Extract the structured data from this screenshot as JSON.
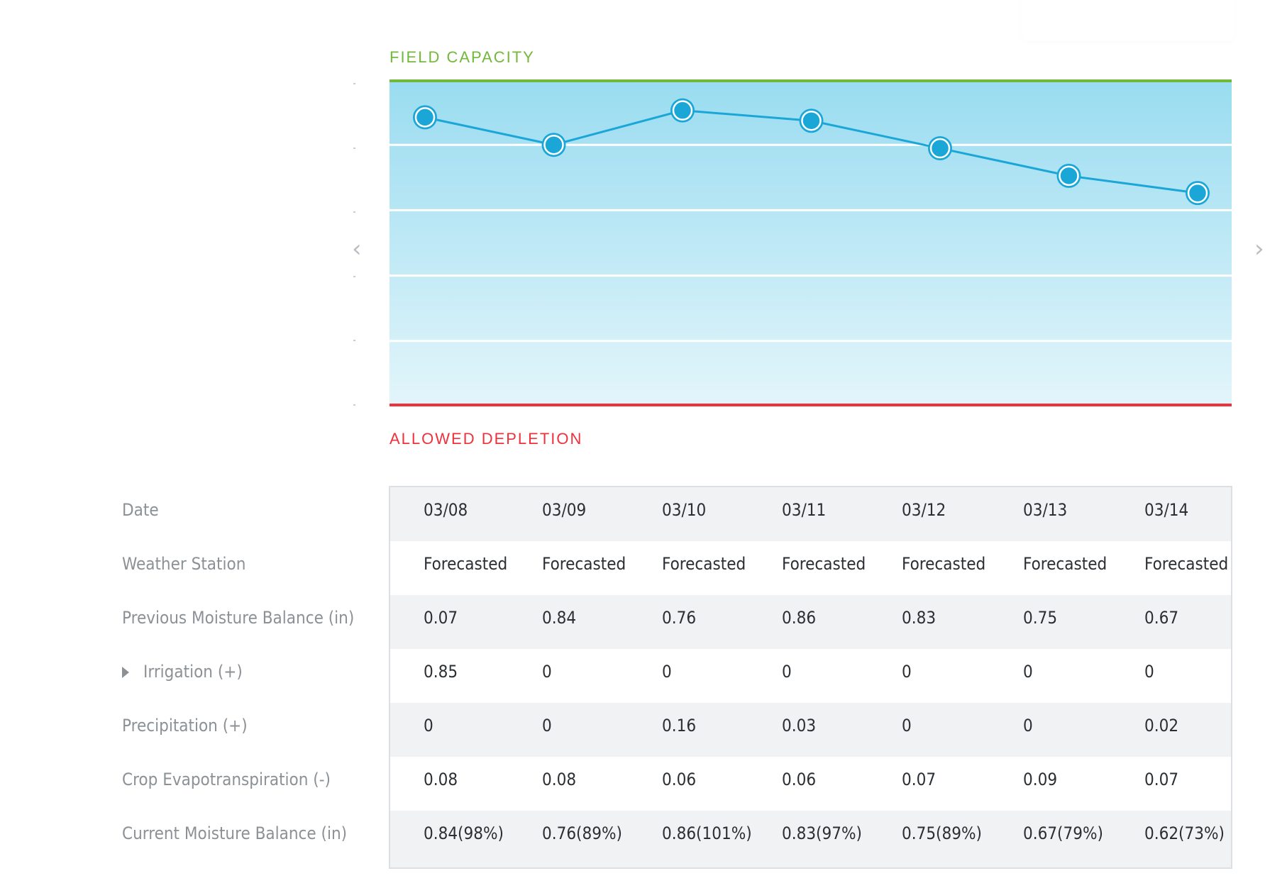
{
  "colors": {
    "field_capacity": "#72b93b",
    "allowed_depletion": "#f0303b",
    "line": "#1aa7d8",
    "band_top": "#99dcf0",
    "band_bottom": "#e3f5fb",
    "row_alt": "#f1f2f4"
  },
  "icons": {
    "prev": "chevron-left-icon",
    "next": "chevron-right-icon",
    "expand": "triangle-right-icon"
  },
  "nav": {
    "prev_glyph": "‹",
    "next_glyph": "›"
  },
  "chart_data": {
    "type": "line",
    "top_label": "FIELD CAPACITY",
    "bottom_label": "ALLOWED DEPLETION",
    "categories": [
      "03/08",
      "03/09",
      "03/10",
      "03/11",
      "03/12",
      "03/13",
      "03/14"
    ],
    "series": [
      {
        "values": [
          0.84,
          0.76,
          0.86,
          0.83,
          0.75,
          0.67,
          0.62
        ]
      }
    ],
    "ylim": [
      0,
      0.95
    ],
    "grid": true
  },
  "table": {
    "row_labels": [
      "Date",
      "Weather Station",
      "Previous Moisture Balance (in)",
      "Irrigation (+)",
      "Precipitation (+)",
      "Crop Evapotranspiration (-)",
      "Current Moisture Balance (in)"
    ],
    "rows": [
      [
        "03/08",
        "03/09",
        "03/10",
        "03/11",
        "03/12",
        "03/13",
        "03/14"
      ],
      [
        "Forecasted",
        "Forecasted",
        "Forecasted",
        "Forecasted",
        "Forecasted",
        "Forecasted",
        "Forecasted"
      ],
      [
        "0.07",
        "0.84",
        "0.76",
        "0.86",
        "0.83",
        "0.75",
        "0.67"
      ],
      [
        "0.85",
        "0",
        "0",
        "0",
        "0",
        "0",
        "0"
      ],
      [
        "0",
        "0",
        "0.16",
        "0.03",
        "0",
        "0",
        "0.02"
      ],
      [
        "0.08",
        "0.08",
        "0.06",
        "0.06",
        "0.07",
        "0.09",
        "0.07"
      ],
      [
        "0.84(98%)",
        "0.76(89%)",
        "0.86(101%)",
        "0.83(97%)",
        "0.75(89%)",
        "0.67(79%)",
        "0.62(73%)"
      ]
    ]
  }
}
